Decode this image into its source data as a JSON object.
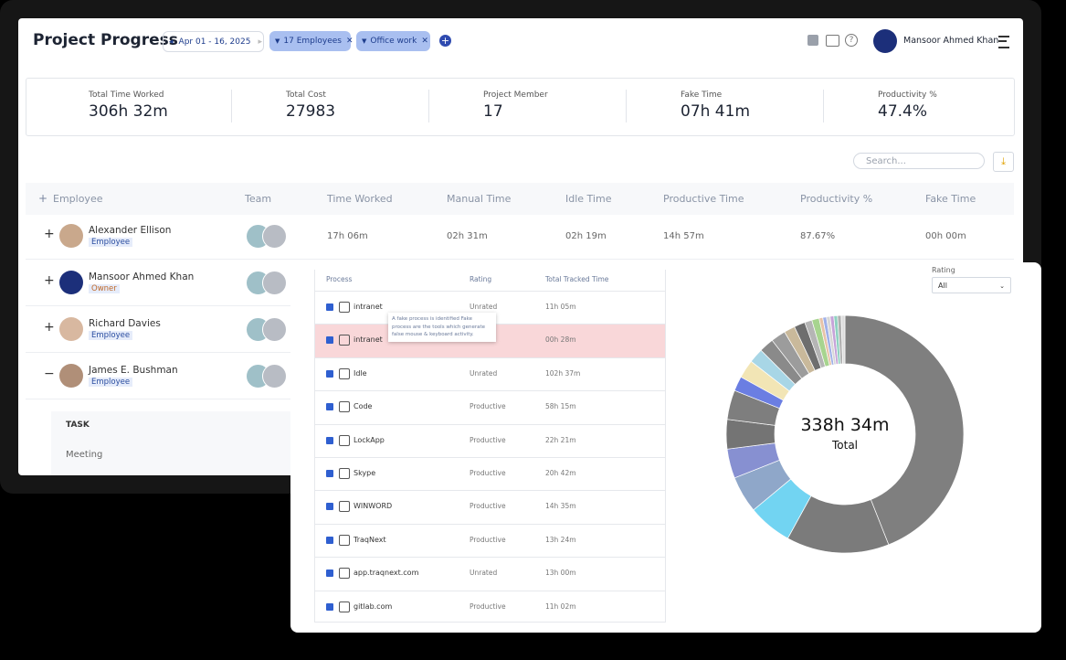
{
  "header": {
    "title": "Project Progress",
    "date_range": "Apr 01  -  16, 2025",
    "filters": [
      "17 Employees",
      "Office work"
    ],
    "user": "Mansoor Ahmed Khan"
  },
  "summary": [
    {
      "label": "Total Time Worked",
      "value": "306h 32m"
    },
    {
      "label": "Total Cost",
      "value": "27983"
    },
    {
      "label": "Project Member",
      "value": "17"
    },
    {
      "label": "Fake Time",
      "value": "07h 41m"
    },
    {
      "label": "Productivity %",
      "value": "47.4%"
    }
  ],
  "search_placeholder": "Search...",
  "table": {
    "columns": [
      "Employee",
      "Team",
      "Time Worked",
      "Manual Time",
      "Idle Time",
      "Productive Time",
      "Productivity %",
      "Fake Time"
    ],
    "rows": [
      {
        "name": "Alexander Ellison",
        "role": "Employee",
        "cells": [
          "17h 06m",
          "02h 31m",
          "02h 19m",
          "14h 57m",
          "87.67%",
          "00h 00m"
        ]
      },
      {
        "name": "Mansoor Ahmed Khan",
        "role": "Owner"
      },
      {
        "name": "Richard Davies",
        "role": "Employee"
      },
      {
        "name": "James E. Bushman",
        "role": "Employee"
      }
    ],
    "task": {
      "header": "TASK",
      "rows": [
        "Meeting"
      ]
    }
  },
  "processes": {
    "columns": [
      "Process",
      "Rating",
      "Total Tracked Time"
    ],
    "rows": [
      {
        "process": "intranet",
        "rating": "Unrated",
        "time": "11h 05m"
      },
      {
        "process": "intranet",
        "rating": null,
        "time": "00h 28m"
      },
      {
        "process": "Idle",
        "rating": "Unrated",
        "time": "102h 37m"
      },
      {
        "process": "Code",
        "rating": "Productive",
        "time": "58h 15m"
      },
      {
        "process": "LockApp",
        "rating": "Productive",
        "time": "22h 21m"
      },
      {
        "process": "Skype",
        "rating": "Productive",
        "time": "20h 42m"
      },
      {
        "process": "WINWORD",
        "rating": "Productive",
        "time": "14h 35m"
      },
      {
        "process": "TraqNext",
        "rating": "Productive",
        "time": "13h 24m"
      },
      {
        "process": "app.traqnext.com",
        "rating": "Unrated",
        "time": "13h 00m"
      },
      {
        "process": "gitlab.com",
        "rating": "Productive",
        "time": "11h 02m"
      }
    ],
    "tooltip": "A fake process is identified Fake process are the tools which generate false mouse & keyboard activity.",
    "rating_filter": {
      "label": "Rating",
      "value": "All"
    }
  },
  "chart_data": {
    "type": "pie",
    "donut": true,
    "center_value": "338h 34m",
    "center_label": "Total",
    "values": [
      44,
      14,
      6,
      5,
      4,
      4,
      4,
      2,
      2.5,
      2,
      2,
      2,
      1.5,
      1.5,
      1,
      1,
      0.5,
      0.5,
      0.5,
      0.5,
      0.5,
      0.5,
      0.5
    ],
    "colors": [
      "#7f7f7f",
      "#7b7b7b",
      "#72d4f2",
      "#8fa7c9",
      "#8790d1",
      "#747474",
      "#7e7e7e",
      "#6b7ee2",
      "#f2e5b5",
      "#a8d6e6",
      "#8a8a8a",
      "#9c9c9c",
      "#c9b99b",
      "#6e6e6e",
      "#b5b5b5",
      "#a7d48f",
      "#e7c3a8",
      "#9fb0e8",
      "#d7d7d7",
      "#c6a4d9",
      "#8fd1c0",
      "#b0b0b0",
      "#dddddd"
    ]
  }
}
